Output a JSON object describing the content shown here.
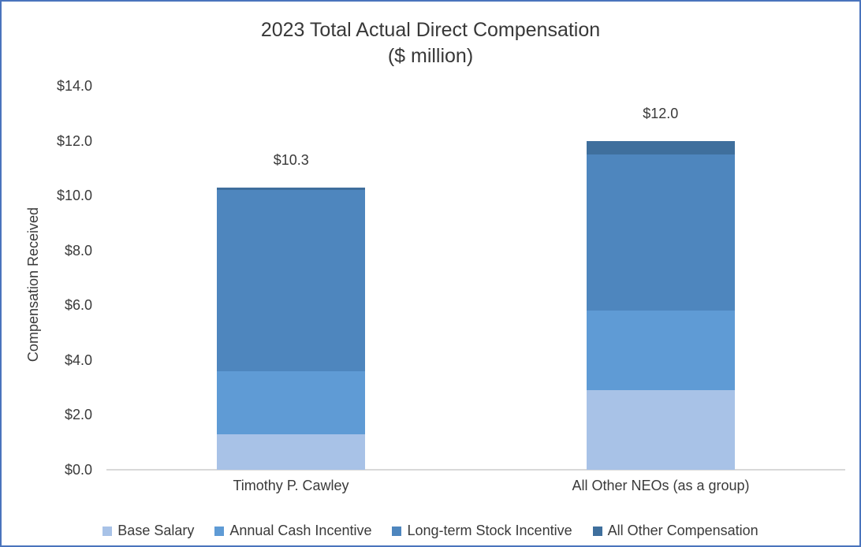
{
  "chart_data": {
    "type": "bar",
    "stacked": true,
    "title": "2023 Total Actual Direct Compensation",
    "subtitle": "($ million)",
    "ylabel": "Compensation Received",
    "xlabel": "",
    "ylim": [
      0,
      14
    ],
    "ytick_step": 2,
    "ytick_labels": [
      "$0.0",
      "$2.0",
      "$4.0",
      "$6.0",
      "$8.0",
      "$10.0",
      "$12.0",
      "$14.0"
    ],
    "grid": false,
    "legend_position": "bottom",
    "categories": [
      "Timothy P. Cawley",
      "All Other NEOs (as a group)"
    ],
    "totals": [
      10.3,
      12.0
    ],
    "total_labels": [
      "$10.3",
      "$12.0"
    ],
    "series": [
      {
        "name": "Base Salary",
        "color": "#A8C2E7",
        "values": [
          1.3,
          2.9
        ]
      },
      {
        "name": "Annual Cash Incentive",
        "color": "#5F9BD5",
        "values": [
          2.3,
          2.9
        ]
      },
      {
        "name": "Long-term Stock Incentive",
        "color": "#4E86BE",
        "values": [
          6.6,
          5.7
        ]
      },
      {
        "name": "All Other Compensation",
        "color": "#3F6F9D",
        "values": [
          0.1,
          0.5
        ]
      }
    ]
  },
  "frame": {
    "border_color": "#4A74BD",
    "axis_line_color": "#D9D9D9"
  }
}
